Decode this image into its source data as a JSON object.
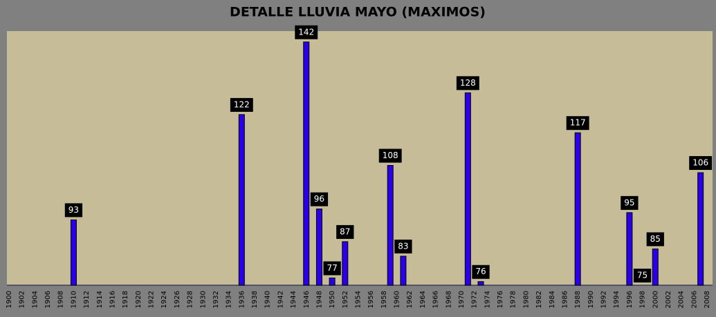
{
  "chart_data": {
    "type": "bar",
    "title": "DETALLE LLUVIA MAYO (MAXIMOS)",
    "categories": [
      "1900",
      null,
      "1902",
      null,
      "1904",
      null,
      "1906",
      null,
      "1908",
      null,
      "1910",
      null,
      "1912",
      null,
      "1914",
      null,
      "1916",
      null,
      "1918",
      null,
      "1920",
      null,
      "1922",
      null,
      "1924",
      null,
      "1926",
      null,
      "1928",
      null,
      "1930",
      null,
      "1932",
      null,
      "1934",
      null,
      "1936",
      null,
      "1938",
      null,
      "1940",
      null,
      "1942",
      null,
      "1944",
      null,
      "1946",
      null,
      "1948",
      null,
      "1950",
      null,
      "1952",
      null,
      "1954",
      null,
      "1956",
      null,
      "1958",
      null,
      "1960",
      null,
      "1962",
      null,
      "1964",
      null,
      "1966",
      null,
      "1968",
      null,
      "1970",
      null,
      "1972",
      null,
      "1974",
      null,
      "1976",
      null,
      "1978",
      null,
      "1980",
      null,
      "1982",
      null,
      "1984",
      null,
      "1986",
      null,
      "1988",
      null,
      "1990",
      null,
      "1992",
      null,
      "1994",
      null,
      "1996",
      null,
      "1998",
      null,
      "2000",
      null,
      "2002",
      null,
      "2004",
      null,
      "2006",
      null,
      "2008"
    ],
    "values": [
      null,
      null,
      null,
      null,
      null,
      null,
      null,
      null,
      null,
      null,
      93,
      null,
      null,
      null,
      null,
      null,
      null,
      null,
      null,
      null,
      null,
      null,
      null,
      null,
      null,
      null,
      null,
      null,
      null,
      null,
      null,
      null,
      null,
      null,
      null,
      null,
      122,
      null,
      null,
      null,
      null,
      null,
      null,
      null,
      null,
      null,
      142,
      null,
      96,
      null,
      77,
      null,
      87,
      null,
      null,
      null,
      null,
      null,
      null,
      108,
      null,
      83,
      null,
      null,
      null,
      null,
      null,
      null,
      null,
      null,
      null,
      128,
      null,
      76,
      null,
      null,
      null,
      null,
      null,
      null,
      null,
      null,
      null,
      null,
      null,
      null,
      null,
      null,
      117,
      null,
      null,
      null,
      null,
      null,
      null,
      null,
      95,
      null,
      75,
      null,
      85,
      null,
      null,
      null,
      null,
      null,
      null,
      106,
      null
    ],
    "color": "#2a00e8",
    "ylim": [
      75,
      145
    ]
  }
}
